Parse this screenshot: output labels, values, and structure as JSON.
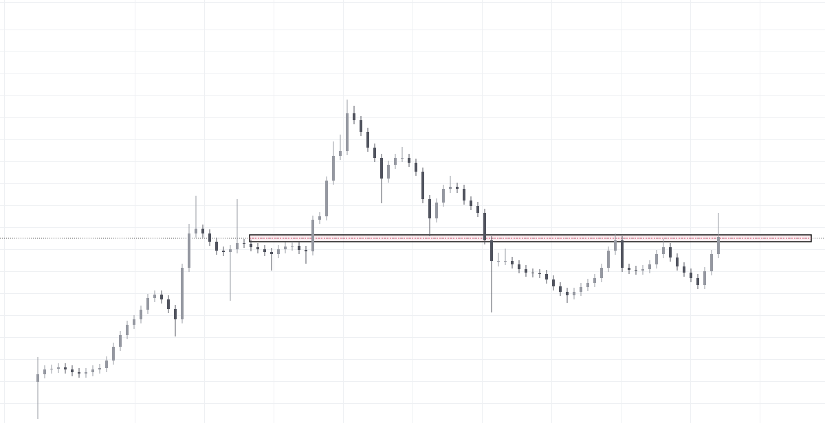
{
  "chart_data": {
    "type": "candlestick",
    "open": [
      60,
      71,
      78,
      79,
      81,
      78,
      74,
      72,
      74,
      78,
      80,
      91,
      111,
      128,
      143,
      151,
      165,
      182,
      187,
      180,
      166,
      151,
      226,
      276,
      283,
      276,
      264,
      251,
      249,
      253,
      262,
      261,
      256,
      253,
      249,
      246,
      253,
      257,
      258,
      252,
      250,
      296,
      301,
      353,
      389,
      396,
      451,
      441,
      424,
      401,
      386,
      356,
      376,
      386,
      386,
      379,
      366,
      326,
      298,
      321,
      341,
      344,
      341,
      324,
      316,
      306,
      266,
      236,
      236,
      236,
      231,
      224,
      219,
      218,
      217,
      209,
      199,
      191,
      186,
      191,
      198,
      204,
      211,
      226,
      251,
      266,
      226,
      223,
      222,
      224,
      231,
      246,
      256,
      241,
      228,
      219,
      211,
      201,
      221,
      246
    ],
    "high": [
      96,
      84,
      85,
      87,
      87,
      84,
      80,
      80,
      84,
      86,
      97,
      117,
      134,
      149,
      157,
      171,
      188,
      193,
      193,
      186,
      172,
      232,
      290,
      331,
      289,
      282,
      270,
      257,
      259,
      326,
      268,
      267,
      262,
      259,
      255,
      259,
      263,
      264,
      264,
      258,
      302,
      307,
      359,
      410,
      420,
      471,
      462,
      447,
      430,
      407,
      392,
      382,
      392,
      402,
      392,
      385,
      372,
      332,
      327,
      347,
      360,
      350,
      347,
      330,
      322,
      312,
      272,
      248,
      254,
      242,
      237,
      230,
      225,
      224,
      223,
      215,
      205,
      197,
      197,
      204,
      210,
      217,
      232,
      257,
      276,
      272,
      232,
      229,
      230,
      237,
      252,
      268,
      262,
      247,
      234,
      225,
      217,
      227,
      252,
      306
    ],
    "low": [
      6,
      65,
      72,
      73,
      72,
      68,
      66,
      66,
      68,
      72,
      74,
      85,
      105,
      122,
      137,
      145,
      159,
      176,
      174,
      160,
      126,
      145,
      220,
      270,
      270,
      258,
      245,
      243,
      178,
      247,
      255,
      250,
      247,
      243,
      222,
      240,
      247,
      251,
      246,
      232,
      244,
      290,
      295,
      347,
      383,
      390,
      435,
      418,
      395,
      380,
      320,
      350,
      370,
      380,
      373,
      360,
      320,
      272,
      292,
      315,
      335,
      335,
      318,
      310,
      300,
      260,
      161,
      228,
      230,
      225,
      218,
      213,
      212,
      211,
      203,
      193,
      185,
      175,
      180,
      185,
      192,
      198,
      205,
      220,
      245,
      220,
      217,
      216,
      216,
      218,
      225,
      240,
      235,
      222,
      213,
      205,
      195,
      195,
      215,
      240
    ],
    "close": [
      71,
      78,
      79,
      81,
      78,
      74,
      72,
      74,
      78,
      80,
      91,
      111,
      128,
      143,
      151,
      165,
      182,
      187,
      180,
      166,
      151,
      226,
      276,
      283,
      276,
      264,
      251,
      249,
      253,
      262,
      261,
      256,
      253,
      249,
      246,
      253,
      257,
      258,
      252,
      250,
      296,
      301,
      353,
      389,
      396,
      451,
      441,
      424,
      401,
      386,
      356,
      376,
      386,
      386,
      379,
      366,
      326,
      298,
      321,
      341,
      344,
      341,
      324,
      316,
      306,
      266,
      236,
      236,
      236,
      231,
      224,
      219,
      218,
      217,
      209,
      199,
      191,
      186,
      191,
      198,
      204,
      211,
      226,
      251,
      266,
      226,
      223,
      222,
      224,
      231,
      246,
      256,
      241,
      228,
      219,
      211,
      201,
      221,
      246,
      271
    ],
    "ylim": [
      0,
      616
    ],
    "color_up": "#9598a1",
    "color_down": "#50535e"
  }
}
